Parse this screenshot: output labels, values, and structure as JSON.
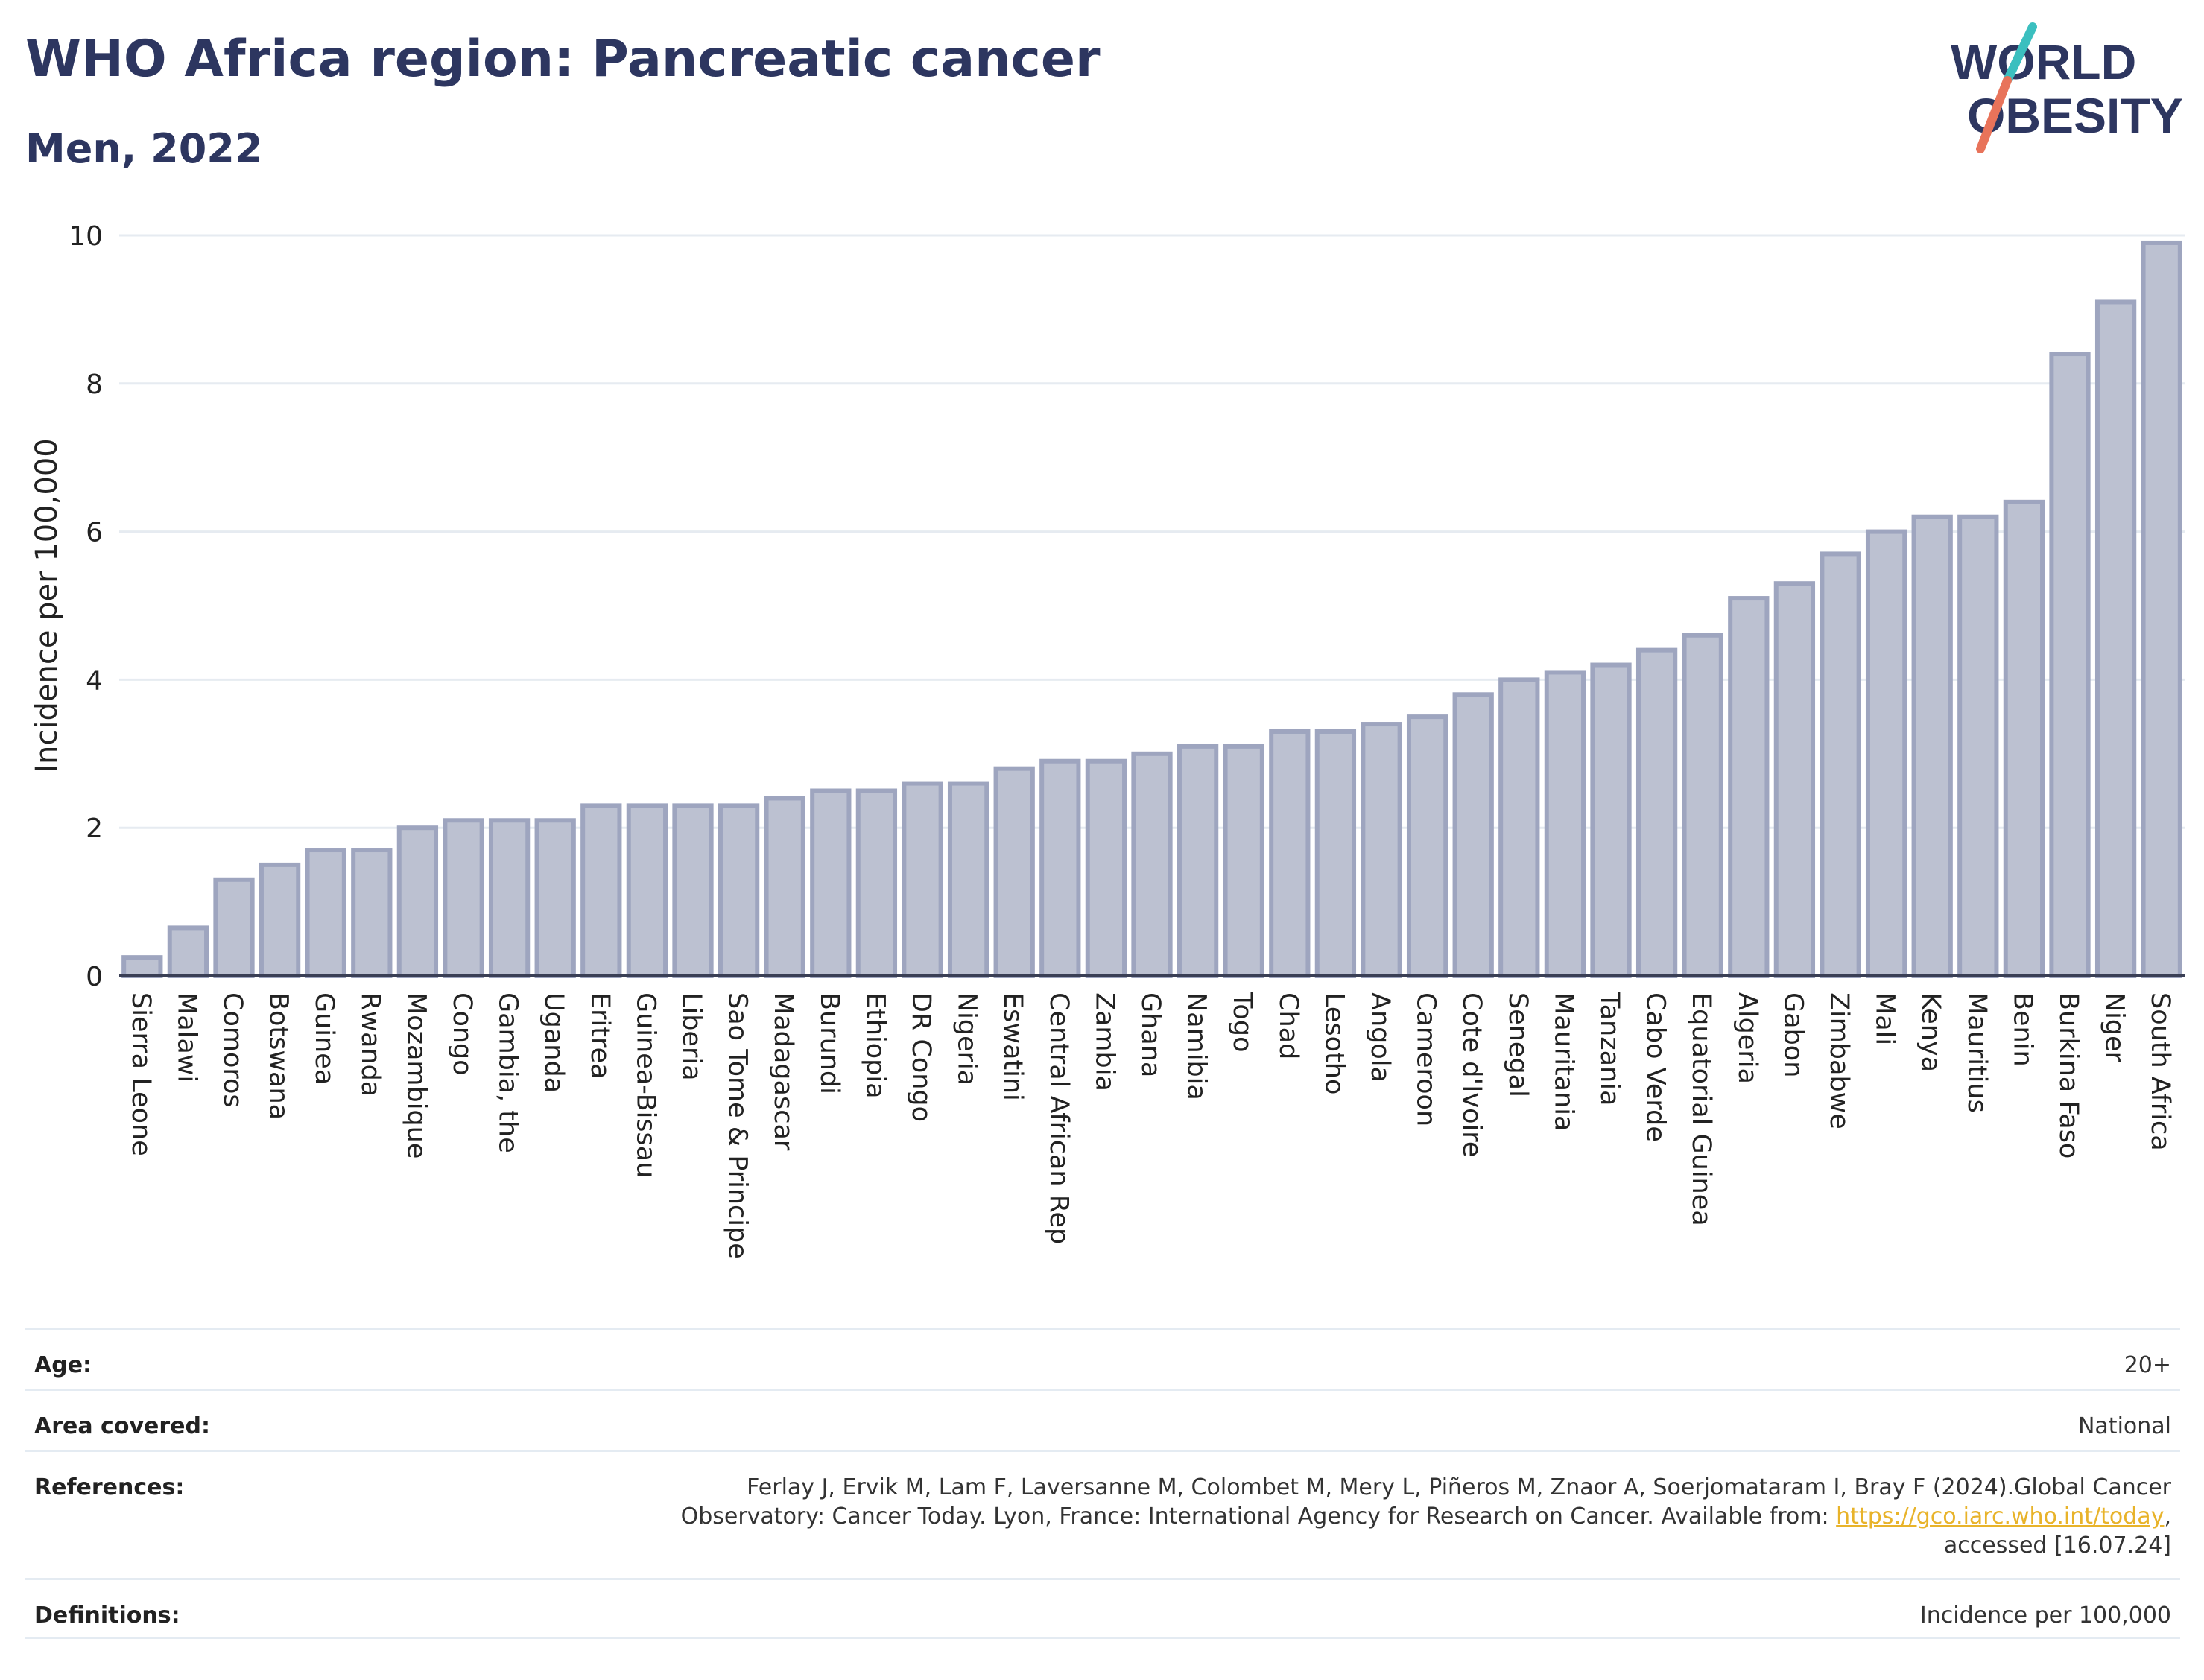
{
  "header": {
    "title": "WHO Africa region: Pancreatic cancer",
    "subtitle": "Men, 2022"
  },
  "logo": {
    "line1": "WORLD",
    "line2": "OBESITY",
    "text_color": "#2d3660",
    "slash_teal": "#3bbfbf",
    "slash_coral": "#e8735a"
  },
  "chart_data": {
    "type": "bar",
    "ylabel": "Incidence per 100,000",
    "ylim": [
      0,
      10
    ],
    "yticks": [
      0,
      2,
      4,
      6,
      8,
      10
    ],
    "grid": true,
    "bar_fill": "#bcc1d1",
    "bar_stroke": "#9ea5bf",
    "categories": [
      "Sierra Leone",
      "Malawi",
      "Comoros",
      "Botswana",
      "Guinea",
      "Rwanda",
      "Mozambique",
      "Congo",
      "Gambia, the",
      "Uganda",
      "Eritrea",
      "Guinea-Bissau",
      "Liberia",
      "Sao Tome & Principe",
      "Madagascar",
      "Burundi",
      "Ethiopia",
      "DR Congo",
      "Nigeria",
      "Eswatini",
      "Central African Rep",
      "Zambia",
      "Ghana",
      "Namibia",
      "Togo",
      "Chad",
      "Lesotho",
      "Angola",
      "Cameroon",
      "Cote d'Ivoire",
      "Senegal",
      "Mauritania",
      "Tanzania",
      "Cabo Verde",
      "Equatorial Guinea",
      "Algeria",
      "Gabon",
      "Zimbabwe",
      "Mali",
      "Kenya",
      "Mauritius",
      "Benin",
      "Burkina Faso",
      "Niger",
      "South Africa"
    ],
    "values": [
      0.25,
      0.65,
      1.3,
      1.5,
      1.7,
      1.7,
      2.0,
      2.1,
      2.1,
      2.1,
      2.3,
      2.3,
      2.3,
      2.3,
      2.4,
      2.5,
      2.5,
      2.6,
      2.6,
      2.8,
      2.9,
      2.9,
      3.0,
      3.1,
      3.1,
      3.3,
      3.3,
      3.4,
      3.5,
      3.8,
      4.0,
      4.1,
      4.2,
      4.4,
      4.6,
      5.1,
      5.3,
      5.7,
      6.0,
      6.2,
      6.2,
      6.4,
      8.4,
      9.1,
      9.9
    ]
  },
  "meta": {
    "age": {
      "label": "Age:",
      "value": "20+"
    },
    "area": {
      "label": "Area covered:",
      "value": "National"
    },
    "references": {
      "label": "References:",
      "text_line1": "Ferlay J, Ervik M, Lam F, Laversanne M, Colombet M, Mery L, Piñeros M, Znaor A, Soerjomataram I, Bray F (2024).Global Cancer",
      "text_line2_before": "Observatory: Cancer Today. Lyon, France: International Agency for Research on Cancer. Available from: ",
      "link": "https://gco.iarc.who.int/today",
      "text_line2_after": ",",
      "text_line3": "accessed [16.07.24]"
    },
    "definitions": {
      "label": "Definitions:",
      "value": "Incidence per 100,000"
    }
  }
}
